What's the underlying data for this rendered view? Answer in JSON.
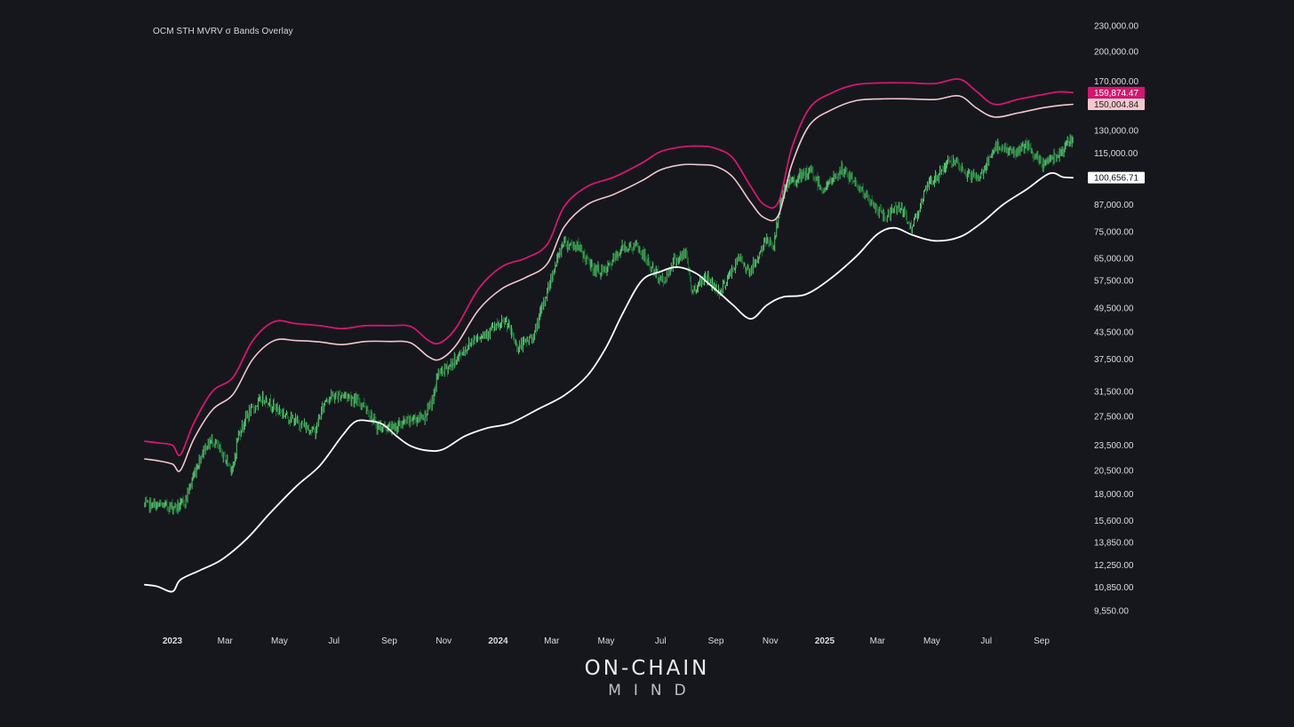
{
  "colors": {
    "background": "#16171d",
    "upper_band": "#d4176f",
    "middle_band": "#f3c8cf",
    "lower_band": "#ffffff",
    "price_up": "#5fd07a",
    "price_down": "#1f7a35",
    "axis_text": "#dcdde0"
  },
  "logo": {
    "line1": "ON-CHAIN",
    "line2": "MIND"
  },
  "chart_data": {
    "type": "line",
    "title": "OCM STH MVRV σ Bands Overlay",
    "xlabel": "",
    "ylabel": "",
    "y_scale": "log",
    "ylim": [
      8700,
      240000
    ],
    "xlim": [
      "2022-12-01",
      "2025-10-15"
    ],
    "grid": false,
    "legend": "none",
    "y_ticks": [
      "230,000.00",
      "200,000.00",
      "170,000.00",
      "130,000.00",
      "115,000.00",
      "87,000.00",
      "75,000.00",
      "65,000.00",
      "57,500.00",
      "49,500.00",
      "43,500.00",
      "37,500.00",
      "31,500.00",
      "27,500.00",
      "23,500.00",
      "20,500.00",
      "18,000.00",
      "15,600.00",
      "13,850.00",
      "12,250.00",
      "10,850.00",
      "9,550.00"
    ],
    "y_tick_values": [
      230000,
      200000,
      170000,
      130000,
      115000,
      87000,
      75000,
      65000,
      57500,
      49500,
      43500,
      37500,
      31500,
      27500,
      23500,
      20500,
      18000,
      15600,
      13850,
      12250,
      10850,
      9550
    ],
    "x_ticks": [
      {
        "label": "2023",
        "date": "2023-01-01",
        "year": true
      },
      {
        "label": "Mar",
        "date": "2023-03-01",
        "year": false
      },
      {
        "label": "May",
        "date": "2023-05-01",
        "year": false
      },
      {
        "label": "Jul",
        "date": "2023-07-01",
        "year": false
      },
      {
        "label": "Sep",
        "date": "2023-09-01",
        "year": false
      },
      {
        "label": "Nov",
        "date": "2023-11-01",
        "year": false
      },
      {
        "label": "2024",
        "date": "2024-01-01",
        "year": true
      },
      {
        "label": "Mar",
        "date": "2024-03-01",
        "year": false
      },
      {
        "label": "May",
        "date": "2024-05-01",
        "year": false
      },
      {
        "label": "Jul",
        "date": "2024-07-01",
        "year": false
      },
      {
        "label": "Sep",
        "date": "2024-09-01",
        "year": false
      },
      {
        "label": "Nov",
        "date": "2024-11-01",
        "year": false
      },
      {
        "label": "2025",
        "date": "2025-01-01",
        "year": true
      },
      {
        "label": "Mar",
        "date": "2025-03-01",
        "year": false
      },
      {
        "label": "May",
        "date": "2025-05-01",
        "year": false
      },
      {
        "label": "Jul",
        "date": "2025-07-01",
        "year": false
      },
      {
        "label": "Sep",
        "date": "2025-09-01",
        "year": false
      }
    ],
    "series": [
      {
        "key": "upper",
        "x": [
          "2022-12-01",
          "2022-12-15",
          "2023-01-01",
          "2023-01-10",
          "2023-01-25",
          "2023-02-15",
          "2023-03-10",
          "2023-04-01",
          "2023-04-25",
          "2023-05-20",
          "2023-06-15",
          "2023-07-10",
          "2023-08-05",
          "2023-09-01",
          "2023-09-25",
          "2023-10-15",
          "2023-10-28",
          "2023-11-15",
          "2023-12-10",
          "2024-01-05",
          "2024-02-01",
          "2024-02-25",
          "2024-03-15",
          "2024-04-10",
          "2024-05-10",
          "2024-06-10",
          "2024-07-01",
          "2024-07-25",
          "2024-08-15",
          "2024-09-01",
          "2024-09-20",
          "2024-10-10",
          "2024-10-25",
          "2024-11-10",
          "2024-11-25",
          "2024-12-15",
          "2025-01-10",
          "2025-02-05",
          "2025-03-05",
          "2025-04-05",
          "2025-05-05",
          "2025-06-01",
          "2025-06-20",
          "2025-07-10",
          "2025-08-05",
          "2025-09-01",
          "2025-09-20",
          "2025-10-06"
        ],
        "y": [
          24000,
          23800,
          23500,
          22300,
          26500,
          31500,
          34000,
          41500,
          46000,
          45500,
          45000,
          44300,
          45000,
          45000,
          44800,
          41500,
          41000,
          44500,
          55000,
          62000,
          65000,
          70000,
          86000,
          96000,
          101000,
          109000,
          116000,
          119000,
          119500,
          118000,
          112000,
          96000,
          87000,
          88000,
          118000,
          147000,
          160000,
          167000,
          168500,
          168500,
          168000,
          172000,
          161000,
          150000,
          154000,
          158000,
          160500,
          159874.47
        ]
      },
      {
        "key": "middle",
        "x": [
          "2022-12-01",
          "2022-12-15",
          "2023-01-01",
          "2023-01-10",
          "2023-01-25",
          "2023-02-15",
          "2023-03-10",
          "2023-04-01",
          "2023-04-25",
          "2023-05-20",
          "2023-06-15",
          "2023-07-10",
          "2023-08-05",
          "2023-09-01",
          "2023-09-25",
          "2023-10-15",
          "2023-10-28",
          "2023-11-15",
          "2023-12-10",
          "2024-01-05",
          "2024-02-01",
          "2024-02-25",
          "2024-03-15",
          "2024-04-10",
          "2024-05-10",
          "2024-06-10",
          "2024-07-01",
          "2024-07-25",
          "2024-08-15",
          "2024-09-01",
          "2024-09-20",
          "2024-10-10",
          "2024-10-25",
          "2024-11-10",
          "2024-11-25",
          "2024-12-15",
          "2025-01-10",
          "2025-02-05",
          "2025-03-05",
          "2025-04-05",
          "2025-05-05",
          "2025-06-01",
          "2025-06-20",
          "2025-07-10",
          "2025-08-05",
          "2025-09-01",
          "2025-09-20",
          "2025-10-06"
        ],
        "y": [
          21800,
          21600,
          21200,
          20500,
          24300,
          28500,
          31000,
          37500,
          41500,
          41500,
          41200,
          40600,
          41300,
          41300,
          41000,
          38000,
          37500,
          40500,
          49000,
          55000,
          58500,
          63000,
          77000,
          87000,
          92000,
          99000,
          105000,
          108000,
          108000,
          107000,
          101000,
          88000,
          81000,
          82000,
          108000,
          134000,
          146000,
          153000,
          154500,
          154500,
          154000,
          157000,
          147000,
          140000,
          143000,
          147000,
          149000,
          150004.84
        ]
      },
      {
        "key": "lower",
        "x": [
          "2022-12-01",
          "2022-12-15",
          "2023-01-01",
          "2023-01-10",
          "2023-02-01",
          "2023-02-25",
          "2023-03-25",
          "2023-04-20",
          "2023-05-20",
          "2023-06-15",
          "2023-07-10",
          "2023-07-25",
          "2023-08-10",
          "2023-08-25",
          "2023-09-10",
          "2023-09-25",
          "2023-10-15",
          "2023-11-01",
          "2023-11-25",
          "2023-12-20",
          "2024-01-15",
          "2024-02-15",
          "2024-03-15",
          "2024-04-10",
          "2024-05-01",
          "2024-05-20",
          "2024-06-10",
          "2024-07-01",
          "2024-07-20",
          "2024-08-10",
          "2024-08-25",
          "2024-09-05",
          "2024-09-20",
          "2024-10-10",
          "2024-10-28",
          "2024-11-15",
          "2024-12-10",
          "2025-01-05",
          "2025-02-05",
          "2025-03-01",
          "2025-03-20",
          "2025-04-10",
          "2025-05-05",
          "2025-06-01",
          "2025-06-25",
          "2025-07-20",
          "2025-08-15",
          "2025-09-10",
          "2025-09-25",
          "2025-10-06"
        ],
        "y": [
          11000,
          10900,
          10600,
          11300,
          11900,
          12600,
          14100,
          16200,
          18800,
          21000,
          24700,
          26700,
          26800,
          26300,
          24600,
          23400,
          22800,
          23000,
          24700,
          25800,
          26500,
          28600,
          30800,
          34300,
          40000,
          48300,
          57500,
          60400,
          61900,
          59800,
          56300,
          53800,
          50400,
          46700,
          50300,
          52600,
          53300,
          57600,
          65500,
          74000,
          76600,
          73600,
          71400,
          72900,
          78500,
          87000,
          94400,
          103000,
          101000,
          100656.71
        ]
      }
    ],
    "price_knots": {
      "x": [
        "2022-12-01",
        "2022-12-20",
        "2023-01-08",
        "2023-01-15",
        "2023-01-25",
        "2023-02-05",
        "2023-02-15",
        "2023-02-25",
        "2023-03-10",
        "2023-03-15",
        "2023-03-25",
        "2023-04-13",
        "2023-04-25",
        "2023-05-15",
        "2023-06-10",
        "2023-06-22",
        "2023-07-13",
        "2023-08-05",
        "2023-08-18",
        "2023-09-05",
        "2023-09-25",
        "2023-10-10",
        "2023-10-20",
        "2023-10-25",
        "2023-11-10",
        "2023-12-05",
        "2023-12-20",
        "2024-01-10",
        "2024-01-23",
        "2024-02-10",
        "2024-02-28",
        "2024-03-14",
        "2024-03-30",
        "2024-04-17",
        "2024-04-30",
        "2024-05-20",
        "2024-06-05",
        "2024-06-25",
        "2024-07-05",
        "2024-07-15",
        "2024-07-30",
        "2024-08-05",
        "2024-08-20",
        "2024-09-06",
        "2024-09-27",
        "2024-10-10",
        "2024-10-29",
        "2024-11-05",
        "2024-11-12",
        "2024-11-22",
        "2024-12-17",
        "2024-12-30",
        "2025-01-20",
        "2025-02-05",
        "2025-02-25",
        "2025-03-10",
        "2025-03-25",
        "2025-04-08",
        "2025-04-25",
        "2025-05-22",
        "2025-06-05",
        "2025-06-22",
        "2025-07-14",
        "2025-08-02",
        "2025-08-14",
        "2025-09-01",
        "2025-09-20",
        "2025-10-06"
      ],
      "y": [
        17000,
        16900,
        16800,
        17300,
        20000,
        23000,
        24200,
        22500,
        20500,
        24500,
        27500,
        30500,
        29000,
        27000,
        25300,
        30300,
        31000,
        29200,
        26000,
        25800,
        27000,
        27500,
        30000,
        34500,
        36500,
        41900,
        43500,
        46000,
        39900,
        42500,
        57000,
        71000,
        69500,
        61000,
        60500,
        69000,
        69000,
        60000,
        57000,
        64000,
        66500,
        54000,
        59000,
        54000,
        65000,
        60500,
        72500,
        69000,
        88000,
        98000,
        104000,
        94000,
        105000,
        98000,
        86000,
        81000,
        87000,
        76500,
        95000,
        111000,
        104000,
        100000,
        120000,
        115000,
        120000,
        108000,
        115000,
        125000
      ]
    }
  }
}
